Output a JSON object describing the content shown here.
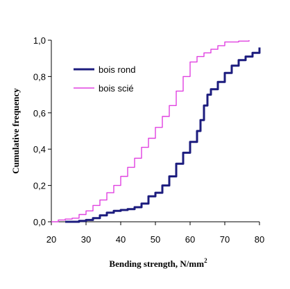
{
  "chart_data": {
    "type": "line",
    "title": "",
    "xlabel": "Bending strength, N/mm",
    "xlabel_superscript": "2",
    "ylabel": "Cumulative frequency",
    "xlim": [
      20,
      80
    ],
    "ylim": [
      0,
      1
    ],
    "x_ticks": [
      "20",
      "30",
      "40",
      "50",
      "60",
      "70",
      "80"
    ],
    "y_ticks": [
      "0,0",
      "0,2",
      "0,4",
      "0,6",
      "0,8",
      "1,0"
    ],
    "grid": false,
    "legend_position": "upper-left",
    "series": [
      {
        "name": "bois rond",
        "color": "#1c1c7e",
        "points": [
          [
            24,
            0.0
          ],
          [
            26,
            0.0
          ],
          [
            28,
            0.005
          ],
          [
            30,
            0.01
          ],
          [
            32,
            0.02
          ],
          [
            34,
            0.035
          ],
          [
            36,
            0.05
          ],
          [
            38,
            0.06
          ],
          [
            40,
            0.065
          ],
          [
            42,
            0.07
          ],
          [
            44,
            0.08
          ],
          [
            46,
            0.1
          ],
          [
            48,
            0.14
          ],
          [
            50,
            0.16
          ],
          [
            52,
            0.2
          ],
          [
            54,
            0.25
          ],
          [
            56,
            0.32
          ],
          [
            58,
            0.38
          ],
          [
            60,
            0.44
          ],
          [
            62,
            0.5
          ],
          [
            63,
            0.56
          ],
          [
            64,
            0.64
          ],
          [
            65,
            0.7
          ],
          [
            66,
            0.73
          ],
          [
            68,
            0.77
          ],
          [
            70,
            0.82
          ],
          [
            72,
            0.86
          ],
          [
            74,
            0.89
          ],
          [
            76,
            0.91
          ],
          [
            78,
            0.93
          ],
          [
            80,
            0.96
          ]
        ]
      },
      {
        "name": "bois scié",
        "color": "#e040e0",
        "points": [
          [
            20,
            0.0
          ],
          [
            22,
            0.01
          ],
          [
            24,
            0.015
          ],
          [
            26,
            0.02
          ],
          [
            28,
            0.04
          ],
          [
            30,
            0.06
          ],
          [
            32,
            0.09
          ],
          [
            34,
            0.12
          ],
          [
            36,
            0.16
          ],
          [
            38,
            0.2
          ],
          [
            40,
            0.25
          ],
          [
            42,
            0.3
          ],
          [
            44,
            0.35
          ],
          [
            46,
            0.41
          ],
          [
            48,
            0.46
          ],
          [
            50,
            0.52
          ],
          [
            52,
            0.58
          ],
          [
            54,
            0.64
          ],
          [
            56,
            0.72
          ],
          [
            58,
            0.8
          ],
          [
            60,
            0.88
          ],
          [
            62,
            0.91
          ],
          [
            64,
            0.93
          ],
          [
            66,
            0.95
          ],
          [
            68,
            0.97
          ],
          [
            70,
            0.99
          ],
          [
            74,
            0.995
          ],
          [
            77,
            1.0
          ]
        ]
      }
    ]
  }
}
